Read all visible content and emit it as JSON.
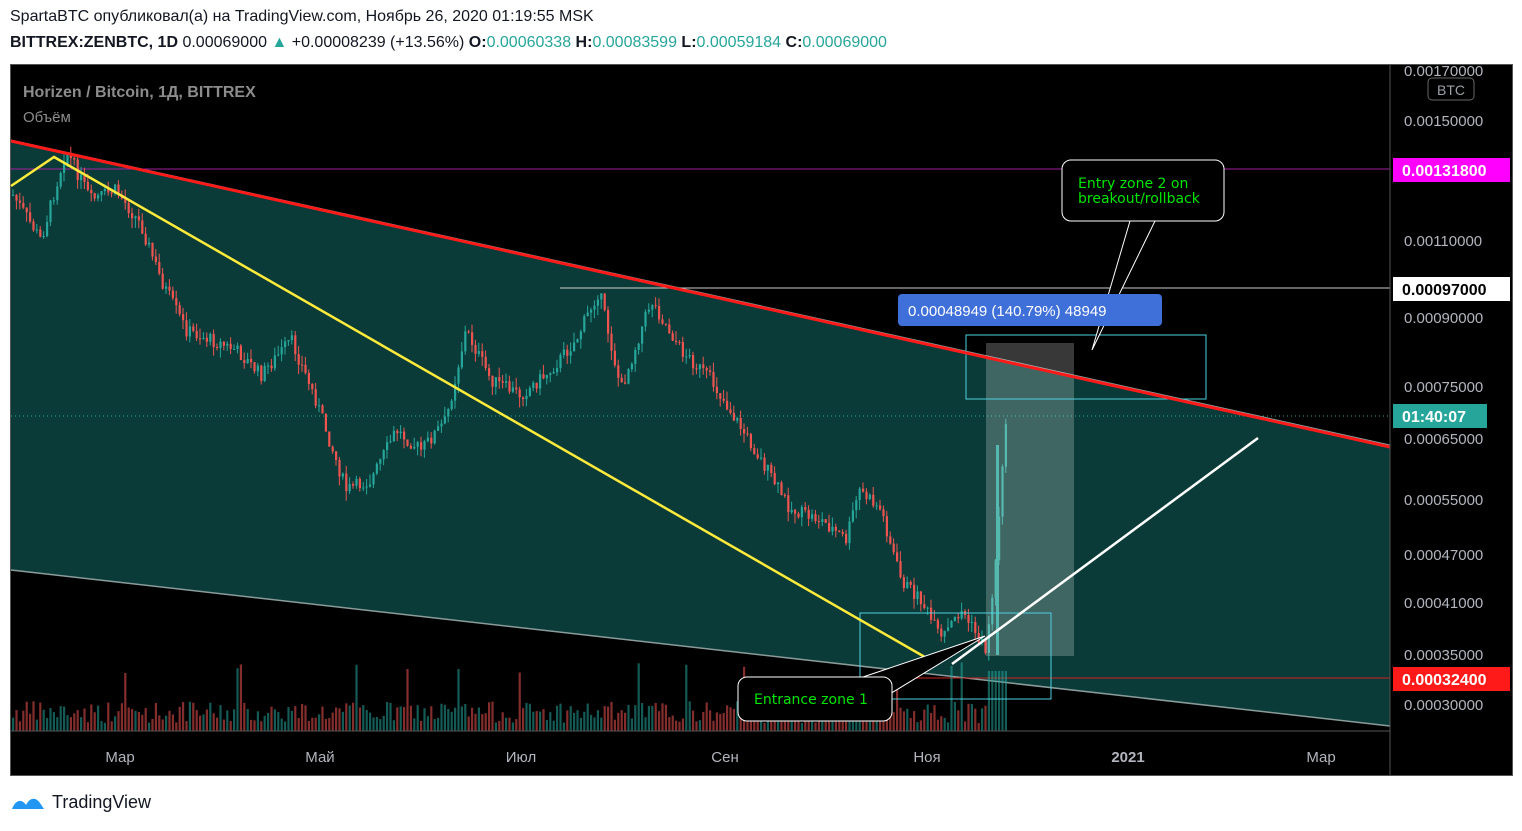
{
  "header": {
    "line1": "SpartaBTC опубликовал(а) на TradingView.com, Ноябрь 26, 2020 01:19:55 MSK",
    "symbol": "BITTREX:ZENBTC, 1D",
    "price": "0.00069000",
    "change": "+0.00008239 (+13.56%)",
    "o_label": "O:",
    "o": "0.00060338",
    "h_label": "H:",
    "h": "0.00083599",
    "l_label": "L:",
    "l": "0.00059184",
    "c_label": "C:",
    "c": "0.00069000"
  },
  "legend": {
    "title": "Horizen / Bitcoin, 1Д, BITTREX",
    "volume": "Объём"
  },
  "currency": "BTC",
  "footer": {
    "brand": "TradingView"
  },
  "colors": {
    "up": "#26a69a",
    "down": "#ef5350",
    "channel": "#0b3b38",
    "resistance": "#ff0000",
    "yellow": "#ffeb3b",
    "magenta": "#ff00ff",
    "countdown": "#26a69a"
  },
  "chart_data": {
    "type": "candlestick",
    "yaxis_ticks": [
      "0.00170000",
      "0.00150000",
      "0.00110000",
      "0.00090000",
      "0.00075000",
      "0.00065000",
      "0.00055000",
      "0.00047000",
      "0.00041000",
      "0.00035000",
      "0.00030000"
    ],
    "xaxis_ticks": [
      "Мар",
      "Май",
      "Июл",
      "Сен",
      "Ноя",
      "2021",
      "Мар"
    ],
    "price_labels": {
      "level_high": "0.00131800",
      "level_mid": "0.00097000",
      "level_low": "0.00032400",
      "countdown": "01:40:07"
    },
    "measure_label": "0.00048949 (140.79%) 48949",
    "annotations": [
      {
        "text": "Entry zone 2 on breakout/rollback"
      },
      {
        "text": "Entrance zone 1"
      }
    ],
    "last_close": 0.00069
  }
}
